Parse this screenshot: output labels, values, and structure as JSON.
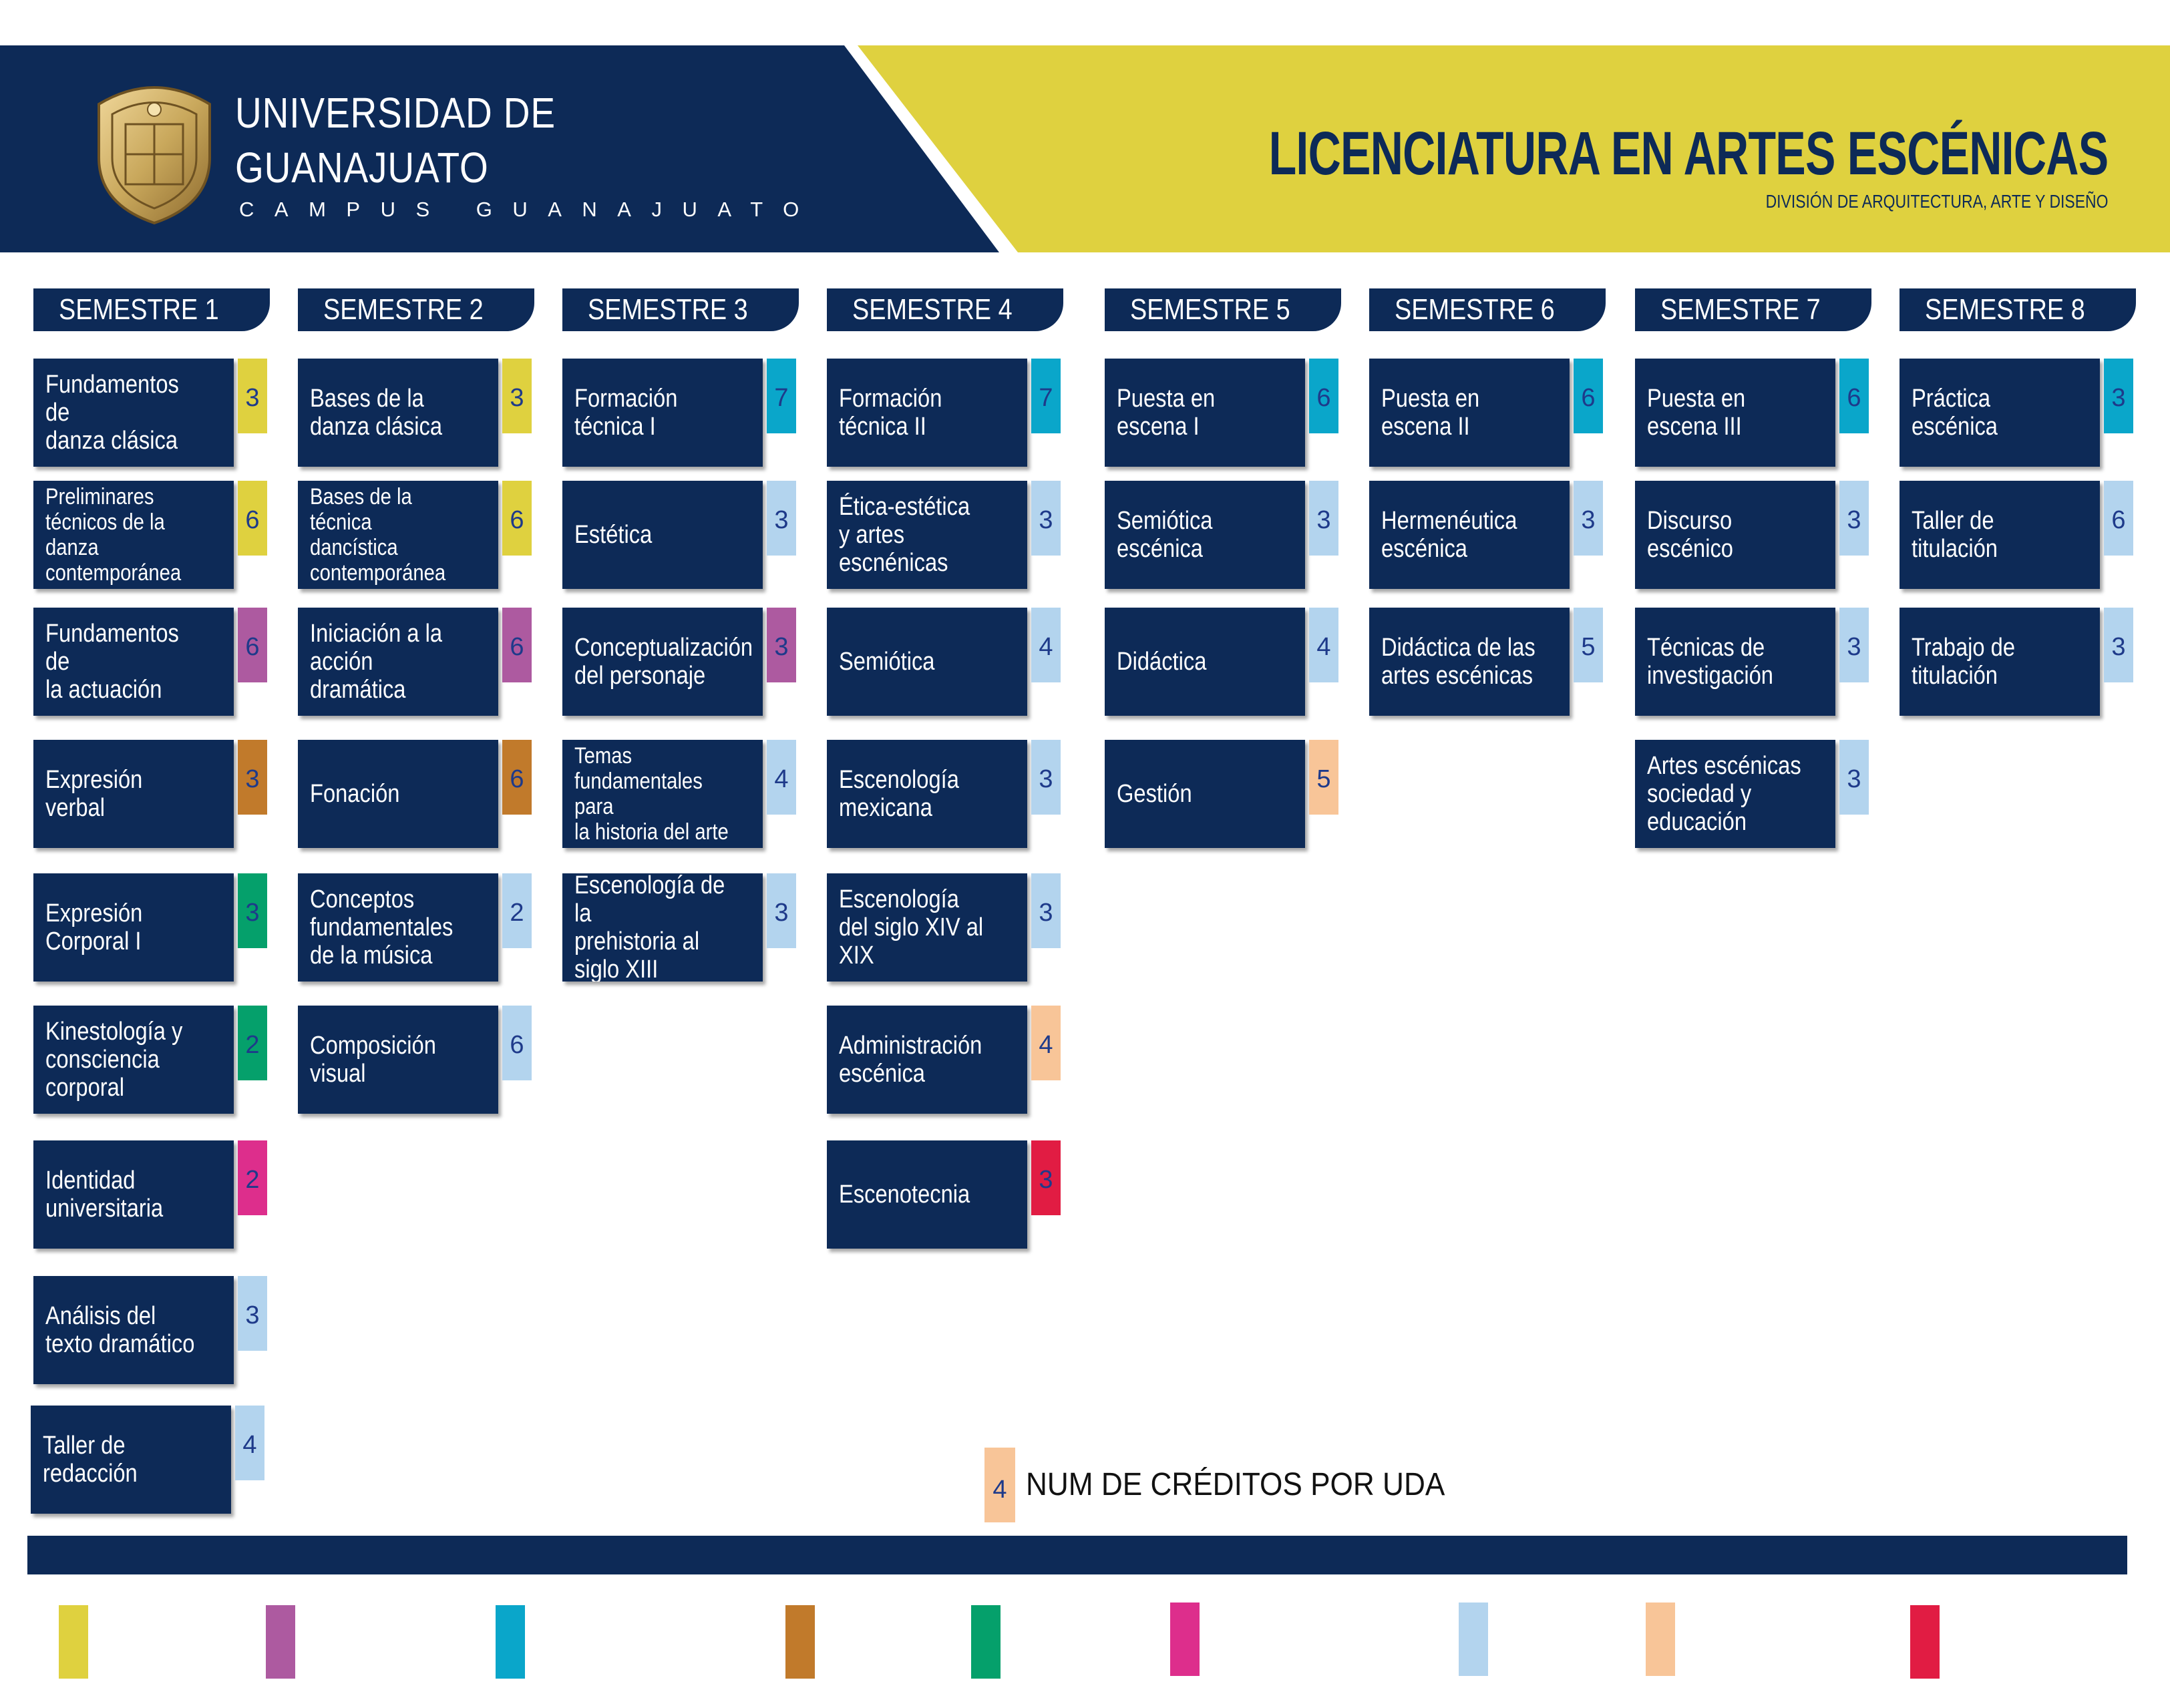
{
  "header": {
    "university_line1": "UNIVERSIDAD DE",
    "university_line2": "GUANAJUATO",
    "campus": "CAMPUS GUANAJUATO",
    "program_title": "LICENCIATURA EN ARTES ESCÉNICAS",
    "division": "DIVISIÓN DE ARQUITECTURA, ARTE Y DISEÑO",
    "colors": {
      "navy": "#0d2a57",
      "yellow": "#dfd13f",
      "gold": "#c9a85c"
    },
    "crest_icon": "university-crest-icon"
  },
  "category_colors": {
    "yellow": "#dfd13f",
    "purple": "#ad5aa0",
    "cyan": "#0aa6ca",
    "brown": "#c17a2b",
    "green": "#05a06b",
    "magenta": "#dd2e8c",
    "lightblue": "#b3d4ee",
    "peach": "#f8c598",
    "red": "#e11c43"
  },
  "semesters": [
    {
      "label": "SEMESTRE 1",
      "courses": [
        {
          "name": "Fundamentos de\ndanza clásica",
          "credits": "3",
          "color": "yellow"
        },
        {
          "name": "Preliminares\ntécnicos de la danza\ncontemporánea",
          "credits": "6",
          "color": "yellow",
          "small": true
        },
        {
          "name": "Fundamentos de\nla actuación",
          "credits": "6",
          "color": "purple"
        },
        {
          "name": "Expresión\nverbal",
          "credits": "3",
          "color": "brown"
        },
        {
          "name": "Expresión\nCorporal I",
          "credits": "3",
          "color": "green"
        },
        {
          "name": "Kinestología y\nconsciencia\ncorporal",
          "credits": "2",
          "color": "green"
        },
        {
          "name": "Identidad\nuniversitaria",
          "credits": "2",
          "color": "magenta"
        },
        {
          "name": "Análisis del\ntexto dramático",
          "credits": "3",
          "color": "lightblue"
        },
        {
          "name": "Taller de\nredacción",
          "credits": "4",
          "color": "lightblue"
        }
      ]
    },
    {
      "label": "SEMESTRE 2",
      "courses": [
        {
          "name": "Bases de la\ndanza clásica",
          "credits": "3",
          "color": "yellow"
        },
        {
          "name": "Bases de la técnica\ndancística\ncontemporánea",
          "credits": "6",
          "color": "yellow",
          "small": true
        },
        {
          "name": "Iniciación a la\nacción dramática",
          "credits": "6",
          "color": "purple"
        },
        {
          "name": "Fonación",
          "credits": "6",
          "color": "brown"
        },
        {
          "name": "Conceptos\nfundamentales\nde la música",
          "credits": "2",
          "color": "lightblue"
        },
        {
          "name": "Composición\nvisual",
          "credits": "6",
          "color": "lightblue"
        }
      ]
    },
    {
      "label": "SEMESTRE 3",
      "courses": [
        {
          "name": "Formación\ntécnica I",
          "credits": "7",
          "color": "cyan"
        },
        {
          "name": "Estética",
          "credits": "3",
          "color": "lightblue"
        },
        {
          "name": "Conceptualización\ndel personaje",
          "credits": "3",
          "color": "purple"
        },
        {
          "name": "Temas\nfundamentales para\nla historia del arte",
          "credits": "4",
          "color": "lightblue",
          "small": true
        },
        {
          "name": "Escenología de la\nprehistoria al\nsiglo XIII",
          "credits": "3",
          "color": "lightblue"
        }
      ]
    },
    {
      "label": "SEMESTRE 4",
      "courses": [
        {
          "name": "Formación\ntécnica II",
          "credits": "7",
          "color": "cyan"
        },
        {
          "name": "Ética-estética\ny artes escnénicas",
          "credits": "3",
          "color": "lightblue"
        },
        {
          "name": "Semiótica",
          "credits": "4",
          "color": "lightblue"
        },
        {
          "name": "Escenología\nmexicana",
          "credits": "3",
          "color": "lightblue"
        },
        {
          "name": "Escenología\ndel siglo XIV al\nXIX",
          "credits": "3",
          "color": "lightblue"
        },
        {
          "name": "Administración\nescénica",
          "credits": "4",
          "color": "peach"
        },
        {
          "name": "Escenotecnia",
          "credits": "3",
          "color": "red"
        }
      ]
    },
    {
      "label": "SEMESTRE 5",
      "courses": [
        {
          "name": "Puesta en\nescena I",
          "credits": "6",
          "color": "cyan"
        },
        {
          "name": "Semiótica\nescénica",
          "credits": "3",
          "color": "lightblue"
        },
        {
          "name": "Didáctica",
          "credits": "4",
          "color": "lightblue"
        },
        {
          "name": "Gestión",
          "credits": "5",
          "color": "peach"
        }
      ]
    },
    {
      "label": "SEMESTRE 6",
      "courses": [
        {
          "name": "Puesta en\nescena II",
          "credits": "6",
          "color": "cyan"
        },
        {
          "name": "Hermenéutica\nescénica",
          "credits": "3",
          "color": "lightblue"
        },
        {
          "name": "Didáctica de las\nartes escénicas",
          "credits": "5",
          "color": "lightblue"
        }
      ]
    },
    {
      "label": "SEMESTRE 7",
      "courses": [
        {
          "name": "Puesta en\nescena III",
          "credits": "6",
          "color": "cyan"
        },
        {
          "name": "Discurso\nescénico",
          "credits": "3",
          "color": "lightblue"
        },
        {
          "name": "Técnicas de\ninvestigación",
          "credits": "3",
          "color": "lightblue"
        },
        {
          "name": "Artes escénicas\nsociedad y\neducación",
          "credits": "3",
          "color": "lightblue"
        }
      ]
    },
    {
      "label": "SEMESTRE 8",
      "courses": [
        {
          "name": "Práctica escénica",
          "credits": "3",
          "color": "cyan"
        },
        {
          "name": "Taller de\ntitulación",
          "credits": "6",
          "color": "lightblue"
        },
        {
          "name": "Trabajo de\ntitulación",
          "credits": "3",
          "color": "lightblue"
        }
      ]
    }
  ],
  "legend": {
    "sample_credits": "4",
    "label": "NUM DE CRÉDITOS POR UDA"
  },
  "footer_swatches": [
    "yellow",
    "purple",
    "cyan",
    "brown",
    "green",
    "magenta",
    "lightblue",
    "peach",
    "red"
  ]
}
